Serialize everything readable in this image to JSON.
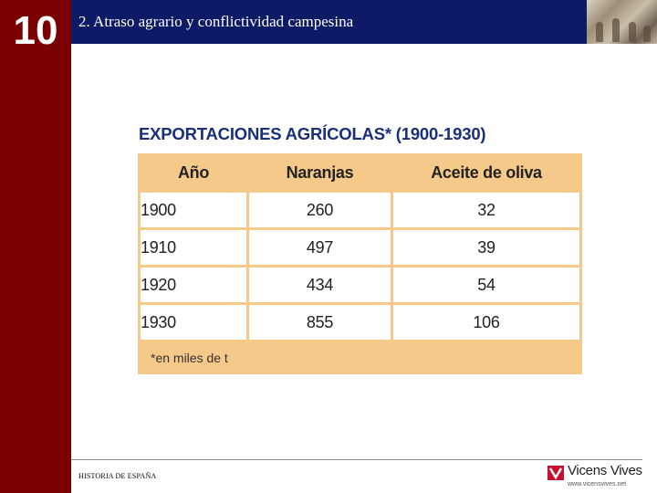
{
  "sidebar": {
    "chapter_number": "10"
  },
  "header": {
    "title": "2. Atraso agrario y conflictividad campesina"
  },
  "table": {
    "title": "EXPORTACIONES AGRÍCOLAS* (1900-1930)",
    "columns": [
      "Año",
      "Naranjas",
      "Aceite de oliva"
    ],
    "rows": [
      {
        "year": "1900",
        "naranjas": "260",
        "aceite": "32"
      },
      {
        "year": "1910",
        "naranjas": "497",
        "aceite": "39"
      },
      {
        "year": "1920",
        "naranjas": "434",
        "aceite": "54"
      },
      {
        "year": "1930",
        "naranjas": "855",
        "aceite": "106"
      }
    ],
    "footnote": "*en miles de t"
  },
  "footer": {
    "left_text": "HISTORIA DE ESPAÑA",
    "logo_name": "Vicens Vives",
    "logo_url": "www.vicensvives.net"
  },
  "colors": {
    "sidebar": "#7a0000",
    "header_bar": "#0d1a66",
    "table_title": "#1a2f7a",
    "table_border": "#f5c98a",
    "logo_red": "#c8102e"
  },
  "icons": {
    "logo_mark": "vicens-vives-logo-icon",
    "header_image": "historical-illustration"
  }
}
